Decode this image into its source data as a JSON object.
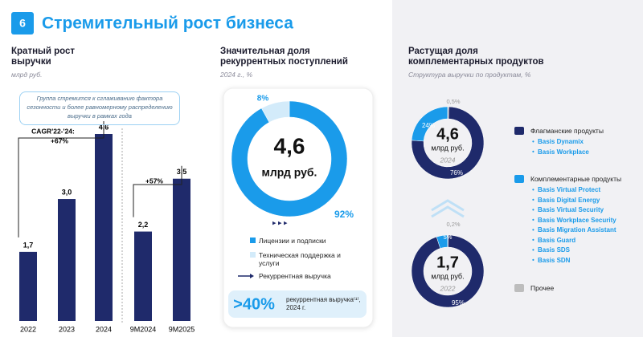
{
  "slide_number": "6",
  "title": "Стремительный рост бизнеса",
  "chart_data": [
    {
      "type": "bar",
      "title": "Кратный рост выручки",
      "subtitle": "млрд руб.",
      "note": "Группа стремится к сглаживанию фактора сезонности и более равномерному распределению выручки в рамках года",
      "categories": [
        "2022",
        "2023",
        "2024",
        "9M2024",
        "9M2025"
      ],
      "values": [
        1.7,
        3.0,
        4.6,
        2.2,
        3.5
      ],
      "value_labels": [
        "1,7",
        "3,0",
        "4,6",
        "2,2",
        "3,5"
      ],
      "color": "#1f2a6b",
      "annotations": [
        "CAGR'22-'24:",
        "+67%",
        "+57%"
      ]
    },
    {
      "type": "pie",
      "title": "Значительная доля рекуррентных поступлений",
      "subtitle": "2024 г., %",
      "categories": [
        "Лицензии и подписки",
        "Техническая поддержка и услуги"
      ],
      "values": [
        92,
        8
      ],
      "value_labels": [
        "92%",
        "8%"
      ],
      "colors": [
        "#1a9bea",
        "#d3ebfa"
      ],
      "center_label": "4,6",
      "center_unit": "млрд руб.",
      "recurring_label": "Рекуррентная выручка",
      "callout": {
        "value": ">40%",
        "text": "рекуррентная выручка⁽¹⁾, 2024 г."
      }
    },
    {
      "type": "pie",
      "title": "Растущая доля комплементарных продуктов",
      "subtitle": "Структура выручки по продуктам, %",
      "series": [
        {
          "name": "Флагманские продукты",
          "color": "#1f2a6b",
          "products": [
            "Basis Dynamix",
            "Basis Workplace"
          ]
        },
        {
          "name": "Комплементарные продукты",
          "color": "#1a9bea",
          "products": [
            "Basis Virtual Protect",
            "Basis Digital Energy",
            "Basis Virtual Security",
            "Basis Workplace Security",
            "Basis Migration Assistant",
            "Basis Guard",
            "Basis SDS",
            "Basis SDN"
          ]
        },
        {
          "name": "Прочее",
          "color": "#bdbdbd"
        }
      ],
      "values": [
        76,
        24,
        0.5
      ],
      "value_labels": [
        "76%",
        "24%",
        "0,5%"
      ],
      "center_label": "4,6",
      "center_unit": "млрд руб.",
      "center_year": "2024"
    },
    {
      "type": "pie",
      "values": [
        95,
        5,
        0.2
      ],
      "value_labels": [
        "95%",
        "5%",
        "0,2%"
      ],
      "colors": [
        "#1f2a6b",
        "#1a9bea",
        "#bdbdbd"
      ],
      "center_label": "1,7",
      "center_unit": "млрд руб.",
      "center_year": "2022"
    }
  ]
}
